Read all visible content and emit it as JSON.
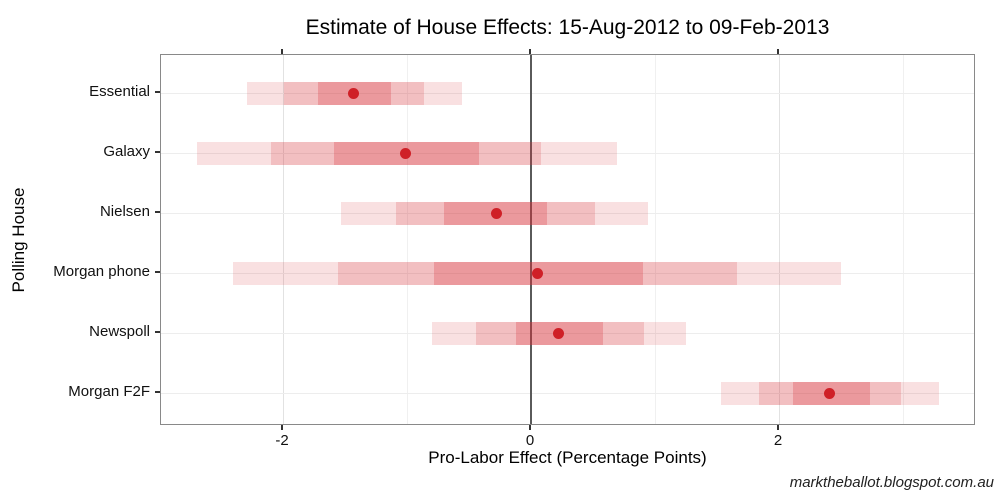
{
  "title": "Estimate of House Effects: 15-Aug-2012 to 09-Feb-2013",
  "watermark": "marktheballot.blogspot.com.au",
  "chart_data": {
    "type": "scatter",
    "subtype": "nested-credible-interval-dot-plot",
    "title": "Estimate of House Effects: 15-Aug-2012 to 09-Feb-2013",
    "xlabel": "Pro-Labor Effect (Percentage Points)",
    "ylabel": "Polling House",
    "x_ticks": [
      -2,
      0,
      2
    ],
    "x_minor_ticks": [
      -1,
      1,
      3
    ],
    "xlim": [
      -2.98,
      3.59
    ],
    "zero_reference_line": 0,
    "grid": true,
    "categories": [
      "Essential",
      "Galaxy",
      "Nielsen",
      "Morgan phone",
      "Newspoll",
      "Morgan F2F"
    ],
    "series": [
      {
        "name": "Essential",
        "point": -1.43,
        "inner": [
          -1.72,
          -1.13
        ],
        "middle": [
          -1.99,
          -0.86
        ],
        "outer": [
          -2.29,
          -0.56
        ]
      },
      {
        "name": "Galaxy",
        "point": -1.01,
        "inner": [
          -1.59,
          -0.42
        ],
        "middle": [
          -2.1,
          0.08
        ],
        "outer": [
          -2.69,
          0.69
        ]
      },
      {
        "name": "Nielsen",
        "point": -0.28,
        "inner": [
          -0.7,
          0.13
        ],
        "middle": [
          -1.09,
          0.52
        ],
        "outer": [
          -1.53,
          0.94
        ]
      },
      {
        "name": "Morgan phone",
        "point": 0.05,
        "inner": [
          -0.78,
          0.9
        ],
        "middle": [
          -1.56,
          1.66
        ],
        "outer": [
          -2.4,
          2.5
        ]
      },
      {
        "name": "Newspoll",
        "point": 0.22,
        "inner": [
          -0.12,
          0.58
        ],
        "middle": [
          -0.44,
          0.91
        ],
        "outer": [
          -0.8,
          1.25
        ]
      },
      {
        "name": "Morgan F2F",
        "point": 2.41,
        "inner": [
          2.11,
          2.73
        ],
        "middle": [
          1.84,
          2.98
        ],
        "outer": [
          1.53,
          3.29
        ]
      }
    ],
    "colors": {
      "band_base_rgb": "215,48,56",
      "band_alpha_outer": 0.15,
      "band_alpha_middle": 0.19,
      "band_alpha_inner": 0.26,
      "point": "#cf2027",
      "zero_line": "#5a5a5a",
      "panel_border": "#898989"
    }
  }
}
